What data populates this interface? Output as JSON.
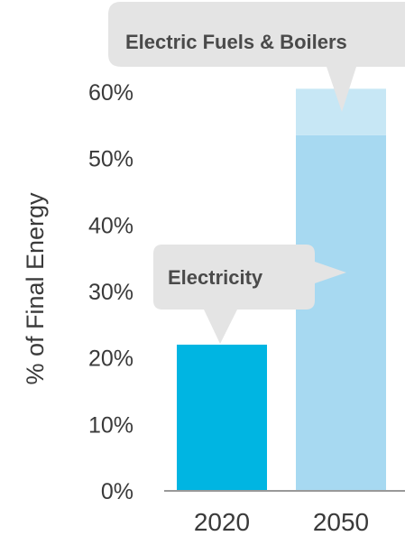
{
  "chart_data": {
    "type": "bar",
    "categories": [
      "2020",
      "2050"
    ],
    "series": [
      {
        "name": "Electricity",
        "values": [
          22,
          53.5
        ]
      },
      {
        "name": "Electric Fuels & Boilers",
        "values": [
          0,
          7
        ]
      }
    ],
    "totals": [
      22,
      60.5
    ],
    "ylabel": "% of Final Energy",
    "xlabel": "",
    "title": "",
    "ylim": [
      0,
      60
    ],
    "yticks": [
      0,
      10,
      20,
      30,
      40,
      50,
      60
    ],
    "ytick_labels": [
      "0%",
      "10%",
      "20%",
      "30%",
      "40%",
      "50%",
      "60%"
    ],
    "stacked": true,
    "grid": false,
    "annotations": [
      {
        "text": "Electric Fuels & Boilers",
        "points_to": "2050"
      },
      {
        "text": "Electricity",
        "points_to": "2020 and 2050"
      }
    ],
    "colors": {
      "bar_2020": "#00b5e2",
      "electricity_2050": "#a7d9f1",
      "electric_fuels_2050": "#c7e7f5",
      "callout_bg": "#e4e4e4",
      "axis": "#999999"
    }
  }
}
